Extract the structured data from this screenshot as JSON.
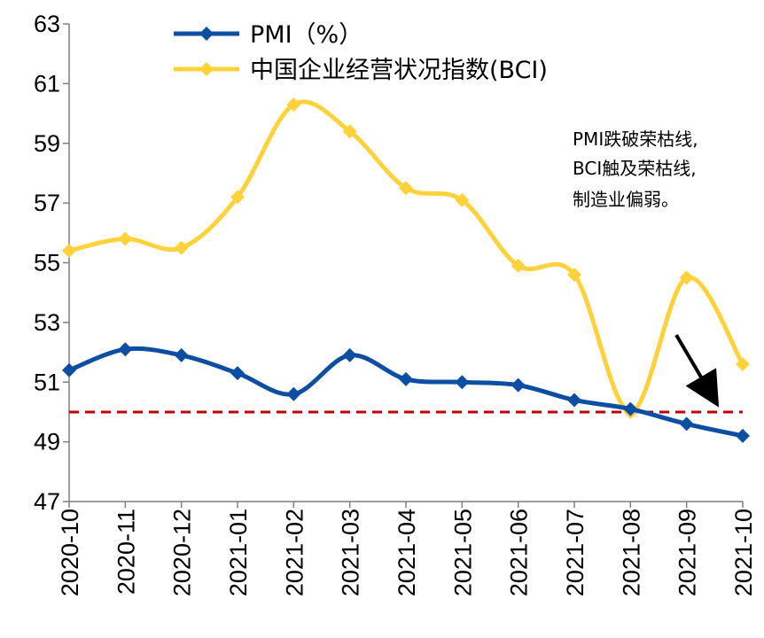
{
  "chart_data": {
    "type": "line",
    "title": "",
    "xlabel": "",
    "ylabel": "",
    "categories": [
      "2020-10",
      "2020-11",
      "2020-12",
      "2021-01",
      "2021-02",
      "2021-03",
      "2021-04",
      "2021-05",
      "2021-06",
      "2021-07",
      "2021-08",
      "2021-09",
      "2021-10"
    ],
    "ylim": [
      47,
      63
    ],
    "yticks": [
      47,
      49,
      51,
      53,
      55,
      57,
      59,
      61,
      63
    ],
    "series": [
      {
        "name": "PMI（%）",
        "color": "#0b4ea2",
        "values": [
          51.4,
          52.1,
          51.9,
          51.3,
          50.6,
          51.9,
          51.1,
          51.0,
          50.9,
          50.4,
          50.1,
          49.6,
          49.2
        ]
      },
      {
        "name": "中国企业经营状况指数(BCI)",
        "color": "#ffd23c",
        "values": [
          55.4,
          55.8,
          55.5,
          57.2,
          60.3,
          59.4,
          57.5,
          57.1,
          54.9,
          54.6,
          50.0,
          54.5,
          51.6
        ]
      }
    ],
    "reference_line": {
      "value": 50,
      "color": "#c00000",
      "style": "dashed"
    },
    "annotation": {
      "lines": [
        "PMI跌破荣枯线,",
        "BCI触及荣枯线,",
        "制造业偏弱。"
      ]
    },
    "legend_position": "top-left"
  }
}
